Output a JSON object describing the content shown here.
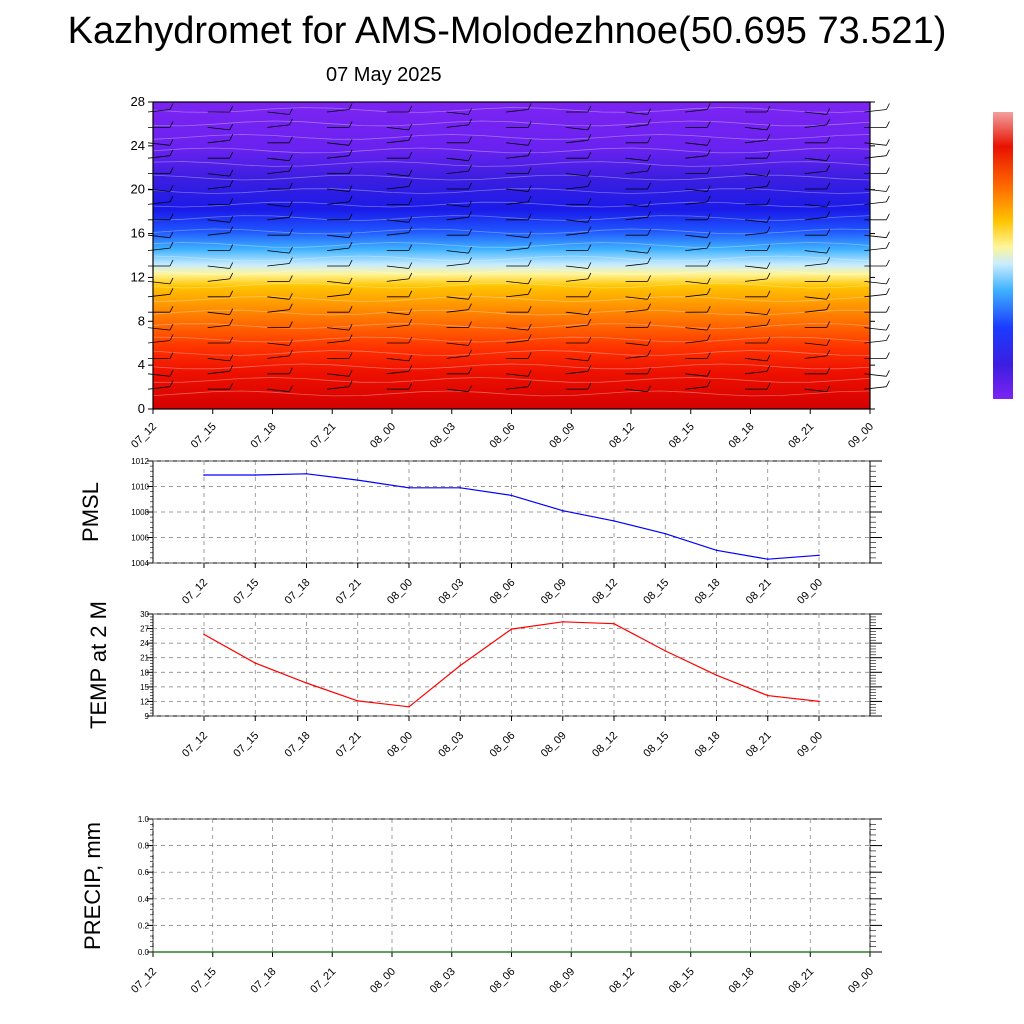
{
  "header": {
    "title": "Kazhydromet for AMS-Molodezhnoe(50.695 73.521)",
    "date": "07 May 2025"
  },
  "colors": {
    "pmsl_line": "#0000ff",
    "temp_line": "#ff0000",
    "precip_line": "#006400",
    "grid": "#888888"
  },
  "chart_data": [
    {
      "id": "upper-air",
      "type": "heatmap",
      "description": "time-height cross section with wind barbs",
      "x_ticks": [
        "07_12",
        "07_15",
        "07_18",
        "07_21",
        "08_00",
        "08_03",
        "08_06",
        "08_09",
        "08_12",
        "08_15",
        "08_18",
        "08_21",
        "09_00"
      ],
      "y_ticks": [
        0,
        4,
        8,
        12,
        16,
        20,
        24,
        28
      ],
      "ylim": [
        0,
        28
      ],
      "colorbar": "purple-blue-cyan-yellow-orange-red",
      "color_bands": [
        {
          "from": 0,
          "to": 5,
          "color": "red"
        },
        {
          "from": 5,
          "to": 9,
          "color": "orange-red"
        },
        {
          "from": 9,
          "to": 12.5,
          "color": "orange-yellow"
        },
        {
          "from": 12.5,
          "to": 13.5,
          "color": "pale yellow"
        },
        {
          "from": 13.5,
          "to": 16,
          "color": "cyan-blue"
        },
        {
          "from": 16,
          "to": 22,
          "color": "blue"
        },
        {
          "from": 22,
          "to": 28,
          "color": "purple"
        }
      ]
    },
    {
      "id": "pmsl",
      "type": "line",
      "ylabel": "PMSL",
      "categories": [
        "07_12",
        "07_15",
        "07_18",
        "07_21",
        "08_00",
        "08_03",
        "08_06",
        "08_09",
        "08_12",
        "08_15",
        "08_18",
        "08_21",
        "09_00"
      ],
      "values": [
        1010.9,
        1010.9,
        1011.0,
        1010.5,
        1009.9,
        1009.9,
        1009.3,
        1008.1,
        1007.3,
        1006.3,
        1005.0,
        1004.3,
        1004.6
      ],
      "ylim": [
        1004,
        1012
      ],
      "y_ticks": [
        1004,
        1006,
        1008,
        1010,
        1012
      ],
      "grid": true
    },
    {
      "id": "temp",
      "type": "line",
      "ylabel": "TEMP at 2 M",
      "categories": [
        "07_12",
        "07_15",
        "07_18",
        "07_21",
        "08_00",
        "08_03",
        "08_06",
        "08_09",
        "08_12",
        "08_15",
        "08_18",
        "08_21",
        "09_00"
      ],
      "values": [
        25.8,
        19.9,
        15.8,
        12.1,
        10.9,
        19.4,
        26.9,
        28.4,
        28.0,
        22.4,
        17.4,
        13.2,
        12.0
      ],
      "ylim": [
        9,
        30
      ],
      "y_ticks": [
        9,
        12,
        15,
        18,
        21,
        24,
        27,
        30
      ],
      "grid": true
    },
    {
      "id": "precip",
      "type": "line",
      "ylabel": "PRECIP, mm",
      "categories": [
        "07_12",
        "07_15",
        "07_18",
        "07_21",
        "08_00",
        "08_03",
        "08_06",
        "08_09",
        "08_12",
        "08_15",
        "08_18",
        "08_21",
        "09_00"
      ],
      "values": [
        0,
        0,
        0,
        0,
        0,
        0,
        0,
        0,
        0,
        0,
        0,
        0,
        0
      ],
      "ylim": [
        0,
        1
      ],
      "y_ticks": [
        "0.0",
        "0.2",
        "0.4",
        "0.6",
        "0.8",
        "1.0"
      ],
      "grid": true
    }
  ]
}
